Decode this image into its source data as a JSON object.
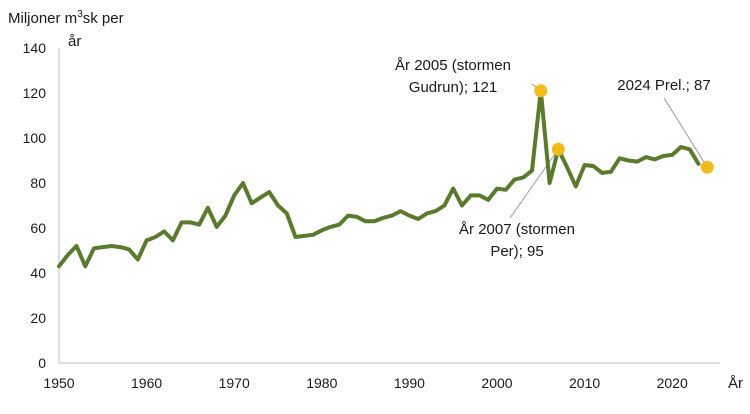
{
  "chart_data": {
    "type": "line",
    "ylabel_line1": "Miljoner m",
    "ylabel_sup": "3",
    "ylabel_line1_rest": "sk per",
    "ylabel_line2": "år",
    "xlabel": "År",
    "xlim": [
      1950,
      2025
    ],
    "ylim": [
      0,
      140
    ],
    "x_ticks": [
      1950,
      1960,
      1970,
      1980,
      1990,
      2000,
      2010,
      2020
    ],
    "y_ticks": [
      0,
      20,
      40,
      60,
      80,
      100,
      120,
      140
    ],
    "grid": false,
    "colors": {
      "line": "#5a7a2e",
      "highlight": "#f2bb1d",
      "leader": "#9a9a9a"
    },
    "series": [
      {
        "x": [
          1950,
          1951,
          1952,
          1953,
          1954,
          1955,
          1956,
          1957,
          1958,
          1959,
          1960,
          1961,
          1962,
          1963,
          1964,
          1965,
          1966,
          1967,
          1968,
          1969,
          1970,
          1971,
          1972,
          1973,
          1974,
          1975,
          1976,
          1977,
          1978,
          1979,
          1980,
          1981,
          1982,
          1983,
          1984,
          1985,
          1986,
          1987,
          1988,
          1989,
          1990,
          1991,
          1992,
          1993,
          1994,
          1995,
          1996,
          1997,
          1998,
          1999,
          2000,
          2001,
          2002,
          2003,
          2004,
          2005,
          2006,
          2007,
          2008,
          2009,
          2010,
          2011,
          2012,
          2013,
          2014,
          2015,
          2016,
          2017,
          2018,
          2019,
          2020,
          2021,
          2022,
          2023
        ],
        "values": [
          43,
          48,
          52,
          43,
          51,
          51.5,
          52,
          51.5,
          50.5,
          46,
          54.5,
          56,
          58.5,
          54.5,
          62.5,
          62.5,
          61.5,
          69,
          60.5,
          65.5,
          74.5,
          80,
          71,
          73.5,
          76,
          70,
          66.5,
          56,
          56.5,
          57,
          59,
          60.5,
          61.5,
          65.5,
          65,
          63,
          63,
          64.5,
          65.5,
          67.5,
          65.5,
          64,
          66.5,
          67.5,
          70,
          77.5,
          70,
          74.5,
          74.5,
          72.5,
          77.5,
          77,
          81.5,
          82.5,
          85.5,
          121,
          80,
          95,
          87,
          78.5,
          88,
          87.5,
          84.5,
          85,
          91,
          90,
          89.5,
          91.5,
          90.5,
          92,
          92.5,
          96,
          95,
          88.5
        ]
      }
    ],
    "highlights": [
      {
        "x": 2005,
        "y": 121,
        "text_line1": "År 2005 (stormen",
        "text_line2": "Gudrun); 121"
      },
      {
        "x": 2007,
        "y": 95,
        "text_line1": "År 2007 (stormen",
        "text_line2": "Per); 95"
      },
      {
        "x": 2024,
        "y": 87,
        "text_line1": "2024 Prel.; 87"
      }
    ]
  }
}
